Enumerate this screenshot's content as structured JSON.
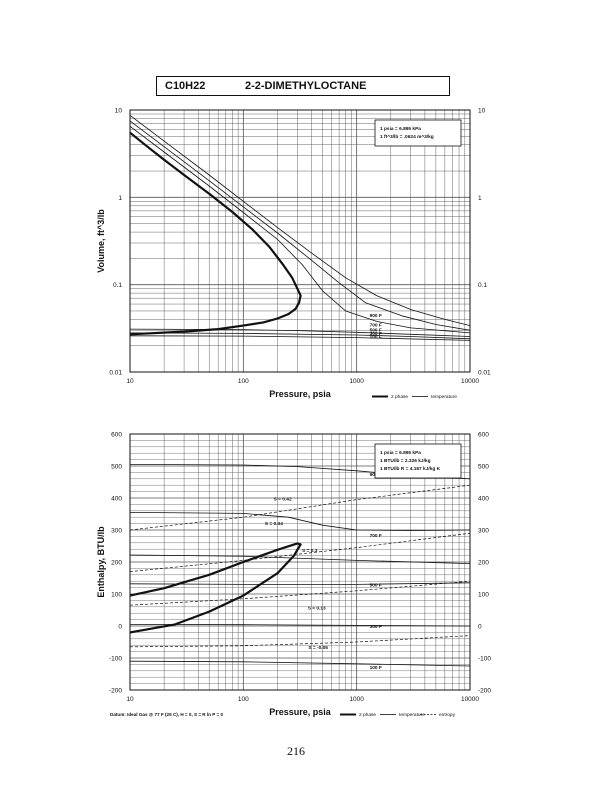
{
  "header": {
    "formula": "C10H22",
    "name": "2-2-DIMETHYLOCTANE"
  },
  "page_number": "216",
  "colors": {
    "ink": "#111111",
    "grid": "#555555"
  },
  "chart_data": [
    {
      "type": "line",
      "xlabel": "Pressure,  psia",
      "ylabel": "Volume, ft^3/lb",
      "xscale": "log",
      "yscale": "log",
      "xlim": [
        10,
        10000
      ],
      "ylim": [
        0.01,
        10
      ],
      "x_ticks": [
        "10",
        "100",
        "1000",
        "10000"
      ],
      "y_ticks": [
        "0.01",
        "0.1",
        "1",
        "10"
      ],
      "grid": true,
      "note_box": [
        "1 psia = 6.895 kPa",
        "1 ft^3/lb = .0624 m^3/kg"
      ],
      "legend": [
        "2 phase",
        "temperature"
      ],
      "series": [
        {
          "style": "2phase",
          "points": [
            [
              10,
              5.5
            ],
            [
              15,
              3.6
            ],
            [
              20,
              2.7
            ],
            [
              30,
              1.8
            ],
            [
              50,
              1.1
            ],
            [
              80,
              0.68
            ],
            [
              120,
              0.43
            ],
            [
              170,
              0.27
            ],
            [
              220,
              0.175
            ],
            [
              270,
              0.12
            ],
            [
              300,
              0.09
            ],
            [
              320,
              0.075
            ],
            [
              310,
              0.062
            ],
            [
              290,
              0.053
            ],
            [
              250,
              0.046
            ],
            [
              200,
              0.041
            ],
            [
              150,
              0.037
            ],
            [
              100,
              0.034
            ],
            [
              60,
              0.031
            ],
            [
              30,
              0.029
            ],
            [
              10,
              0.027
            ]
          ]
        },
        {
          "style": "temperature",
          "points": [
            [
              10,
              6.5
            ],
            [
              20,
              3.3
            ],
            [
              50,
              1.35
            ],
            [
              100,
              0.67
            ],
            [
              200,
              0.33
            ],
            [
              330,
              0.17
            ],
            [
              500,
              0.085
            ],
            [
              800,
              0.05
            ],
            [
              1500,
              0.038
            ],
            [
              3000,
              0.032
            ],
            [
              10000,
              0.028
            ]
          ]
        },
        {
          "style": "temperature",
          "points": [
            [
              10,
              7.5
            ],
            [
              20,
              3.8
            ],
            [
              50,
              1.55
            ],
            [
              100,
              0.78
            ],
            [
              200,
              0.39
            ],
            [
              400,
              0.19
            ],
            [
              700,
              0.105
            ],
            [
              1200,
              0.062
            ],
            [
              2500,
              0.044
            ],
            [
              5000,
              0.035
            ],
            [
              10000,
              0.03
            ]
          ]
        },
        {
          "style": "temperature",
          "points": [
            [
              10,
              8.7
            ],
            [
              20,
              4.4
            ],
            [
              50,
              1.8
            ],
            [
              100,
              0.9
            ],
            [
              200,
              0.45
            ],
            [
              400,
              0.23
            ],
            [
              800,
              0.12
            ],
            [
              1500,
              0.075
            ],
            [
              3000,
              0.052
            ],
            [
              6000,
              0.04
            ],
            [
              10000,
              0.034
            ]
          ]
        },
        {
          "style": "temperature",
          "points": [
            [
              10,
              0.031
            ],
            [
              100,
              0.0305
            ],
            [
              300,
              0.0298
            ],
            [
              1000,
              0.0285
            ],
            [
              3000,
              0.027
            ],
            [
              10000,
              0.0255
            ]
          ]
        },
        {
          "style": "temperature",
          "points": [
            [
              10,
              0.028
            ],
            [
              100,
              0.0277
            ],
            [
              1000,
              0.0265
            ],
            [
              3000,
              0.0255
            ],
            [
              10000,
              0.024
            ]
          ]
        },
        {
          "style": "temperature",
          "points": [
            [
              10,
              0.026
            ],
            [
              100,
              0.0258
            ],
            [
              1000,
              0.0248
            ],
            [
              10000,
              0.023
            ]
          ]
        }
      ],
      "isotherm_labels": [
        {
          "text": "900 F",
          "x": 1300,
          "y": 0.045
        },
        {
          "text": "700 F",
          "x": 1300,
          "y": 0.035
        },
        {
          "text": "500 F",
          "x": 1300,
          "y": 0.0305
        },
        {
          "text": "300 F",
          "x": 1300,
          "y": 0.0278
        },
        {
          "text": "100 F",
          "x": 1300,
          "y": 0.0255
        }
      ]
    },
    {
      "type": "line",
      "xlabel": "Pressure,  psia",
      "ylabel": "Enthalpy, BTU/lb",
      "xscale": "log",
      "yscale": "linear",
      "xlim": [
        10,
        10000
      ],
      "ylim": [
        -200,
        600
      ],
      "x_ticks": [
        "10",
        "100",
        "1000",
        "10000"
      ],
      "y_ticks": [
        "-200",
        "-100",
        "0",
        "100",
        "200",
        "300",
        "400",
        "500",
        "600"
      ],
      "grid": true,
      "note_box": [
        "1 psia = 6.895 kPa",
        "1 BTU/lb = 2.326 kJ/kg",
        "1 BTU/lb R = 4.187 kJ/kg K"
      ],
      "legend": [
        "2 phase",
        "temperature",
        "entropy"
      ],
      "footnote": "Datum: Ideal Gas @ 77 F (25 C), H = 0,  S = R ln P = 0",
      "series": [
        {
          "style": "2phase",
          "points": [
            [
              10,
              95
            ],
            [
              20,
              118
            ],
            [
              50,
              160
            ],
            [
              100,
              200
            ],
            [
              200,
              238
            ],
            [
              300,
              258
            ],
            [
              320,
              255
            ],
            [
              280,
              220
            ],
            [
              200,
              165
            ],
            [
              100,
              95
            ],
            [
              50,
              45
            ],
            [
              25,
              5
            ],
            [
              10,
              -20
            ]
          ]
        },
        {
          "style": "temperature",
          "points": [
            [
              10,
              505
            ],
            [
              100,
              503
            ],
            [
              300,
              498
            ],
            [
              1000,
              485
            ],
            [
              3000,
              470
            ],
            [
              10000,
              460
            ]
          ]
        },
        {
          "style": "temperature",
          "points": [
            [
              10,
              355
            ],
            [
              100,
              352
            ],
            [
              250,
              340
            ],
            [
              500,
              315
            ],
            [
              1000,
              300
            ],
            [
              3000,
              298
            ],
            [
              10000,
              300
            ]
          ]
        },
        {
          "style": "temperature",
          "points": [
            [
              10,
              222
            ],
            [
              100,
              218
            ],
            [
              1000,
              205
            ],
            [
              10000,
              195
            ]
          ]
        },
        {
          "style": "temperature",
          "points": [
            [
              10,
              132
            ],
            [
              100,
              130
            ],
            [
              1000,
              130
            ],
            [
              10000,
              135
            ]
          ]
        },
        {
          "style": "temperature",
          "points": [
            [
              10,
              5
            ],
            [
              100,
              4
            ],
            [
              1000,
              2
            ],
            [
              10000,
              0
            ]
          ]
        },
        {
          "style": "temperature",
          "points": [
            [
              10,
              -110
            ],
            [
              100,
              -112
            ],
            [
              1000,
              -118
            ],
            [
              10000,
              -125
            ]
          ]
        },
        {
          "style": "entropy",
          "points": [
            [
              10,
              300
            ],
            [
              100,
              340
            ],
            [
              1000,
              395
            ],
            [
              10000,
              440
            ]
          ]
        },
        {
          "style": "entropy",
          "points": [
            [
              10,
              170
            ],
            [
              100,
              205
            ],
            [
              1000,
              245
            ],
            [
              10000,
              290
            ]
          ]
        },
        {
          "style": "entropy",
          "points": [
            [
              10,
              65
            ],
            [
              100,
              85
            ],
            [
              1000,
              110
            ],
            [
              10000,
              140
            ]
          ]
        },
        {
          "style": "entropy",
          "points": [
            [
              10,
              -65
            ],
            [
              100,
              -62
            ],
            [
              1000,
              -50
            ],
            [
              10000,
              -30
            ]
          ]
        }
      ],
      "isotherm_labels": [
        {
          "text": "900 F",
          "x": 1300,
          "y": 475
        },
        {
          "text": "700 F",
          "x": 1300,
          "y": 285
        },
        {
          "text": "500 F",
          "x": 1300,
          "y": 130
        },
        {
          "text": "300 F",
          "x": 1300,
          "y": 0
        },
        {
          "text": "100 F",
          "x": 1300,
          "y": -128
        }
      ],
      "entropy_labels": [
        {
          "text": "S = 0.42",
          "x": 185,
          "y": 398
        },
        {
          "text": "S = 0.34",
          "x": 155,
          "y": 322
        },
        {
          "text": "S = 0.3",
          "x": 330,
          "y": 238
        },
        {
          "text": "S = 0.13",
          "x": 370,
          "y": 58
        },
        {
          "text": "S = -0.05",
          "x": 375,
          "y": -65
        }
      ]
    }
  ]
}
